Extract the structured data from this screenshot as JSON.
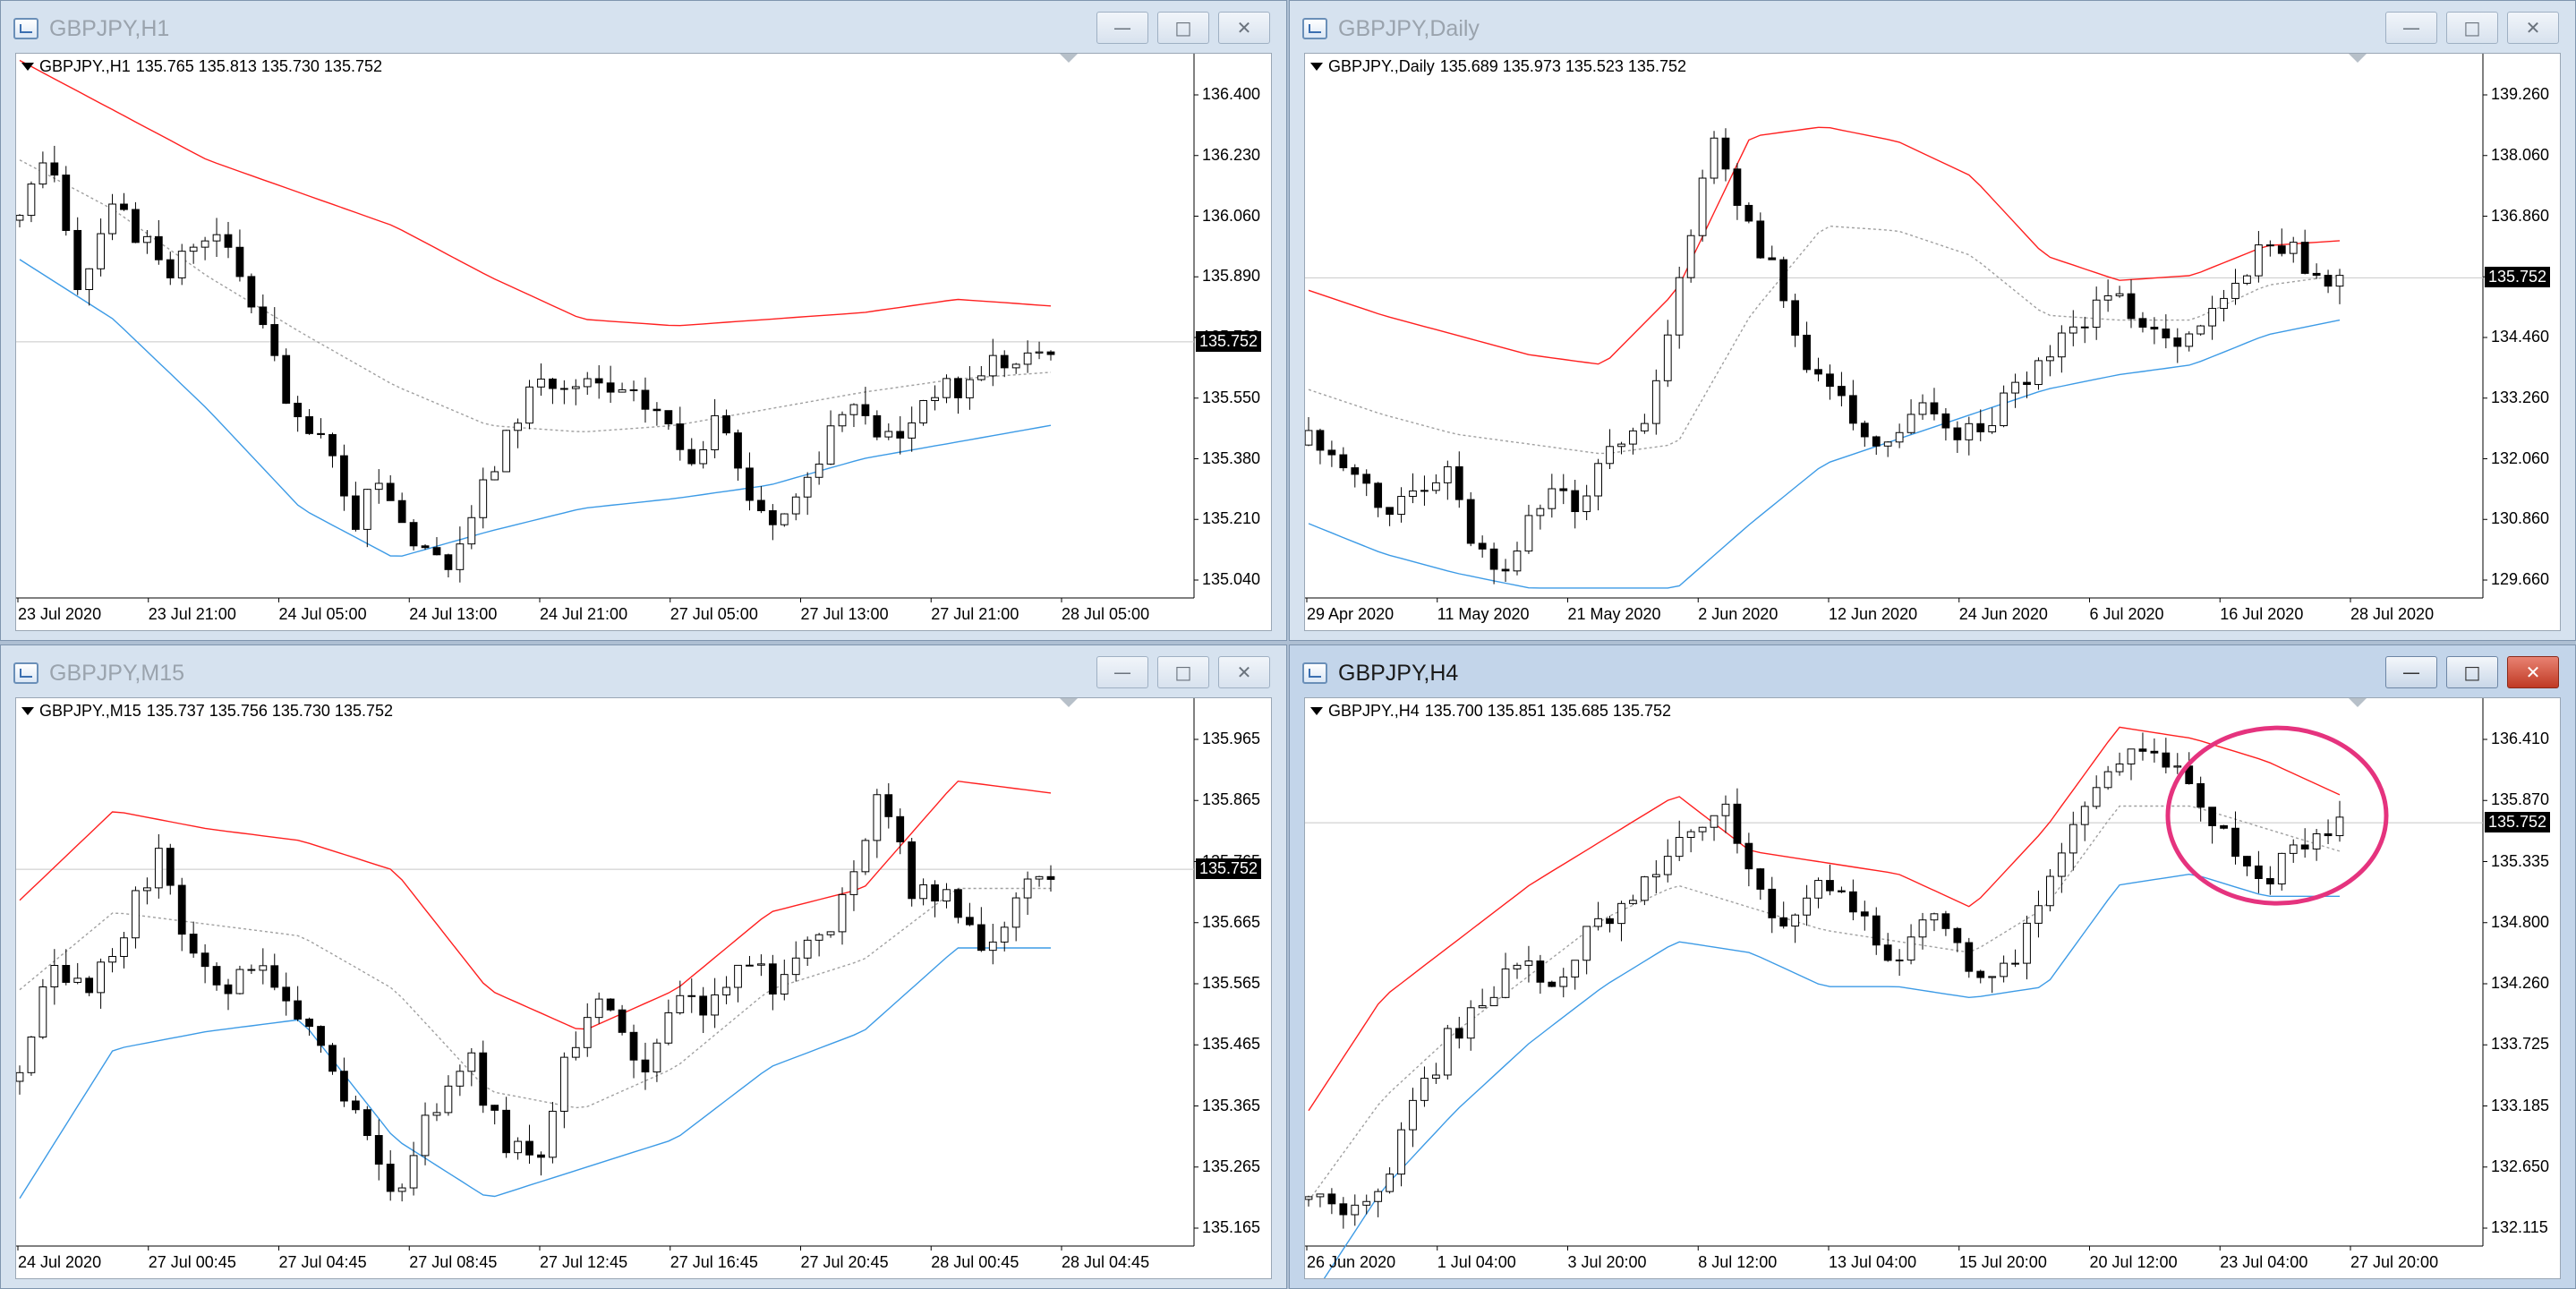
{
  "windows": [
    {
      "title": "GBPJPY,H1",
      "header": {
        "symbol": "GBPJPY.,H1",
        "ohlc": "135.765 135.813 135.730 135.752"
      },
      "current_price": "135.752",
      "y_ticks": [
        "136.400",
        "136.230",
        "136.060",
        "135.890",
        "135.720",
        "135.550",
        "135.380",
        "135.210",
        "135.040"
      ],
      "x_ticks": [
        "23 Jul 2020",
        "23 Jul 21:00",
        "24 Jul 05:00",
        "24 Jul 13:00",
        "24 Jul 21:00",
        "27 Jul 05:00",
        "27 Jul 13:00",
        "27 Jul 21:00",
        "28 Jul 05:00"
      ],
      "active": false
    },
    {
      "title": "GBPJPY,Daily",
      "header": {
        "symbol": "GBPJPY.,Daily",
        "ohlc": "135.689 135.973 135.523 135.752"
      },
      "current_price": "135.752",
      "y_ticks": [
        "139.260",
        "138.060",
        "136.860",
        "135.660",
        "134.460",
        "133.260",
        "132.060",
        "130.860",
        "129.660"
      ],
      "x_ticks": [
        "29 Apr 2020",
        "11 May 2020",
        "21 May 2020",
        "2 Jun 2020",
        "12 Jun 2020",
        "24 Jun 2020",
        "6 Jul 2020",
        "16 Jul 2020",
        "28 Jul 2020"
      ],
      "active": false
    },
    {
      "title": "GBPJPY,M15",
      "header": {
        "symbol": "GBPJPY.,M15",
        "ohlc": "135.737 135.756 135.730 135.752"
      },
      "current_price": "135.752",
      "y_ticks": [
        "135.965",
        "135.865",
        "135.765",
        "135.665",
        "135.565",
        "135.465",
        "135.365",
        "135.265",
        "135.165"
      ],
      "x_ticks": [
        "24 Jul 2020",
        "27 Jul 00:45",
        "27 Jul 04:45",
        "27 Jul 08:45",
        "27 Jul 12:45",
        "27 Jul 16:45",
        "27 Jul 20:45",
        "28 Jul 00:45",
        "28 Jul 04:45"
      ],
      "active": false
    },
    {
      "title": "GBPJPY,H4",
      "header": {
        "symbol": "GBPJPY.,H4",
        "ohlc": "135.700 135.851 135.685 135.752"
      },
      "current_price": "135.752",
      "y_ticks": [
        "136.410",
        "135.870",
        "135.335",
        "134.800",
        "134.260",
        "133.725",
        "133.185",
        "132.650",
        "132.115"
      ],
      "x_ticks": [
        "26 Jun 2020",
        "1 Jul 04:00",
        "3 Jul 20:00",
        "8 Jul 12:00",
        "13 Jul 04:00",
        "15 Jul 20:00",
        "20 Jul 12:00",
        "23 Jul 04:00",
        "27 Jul 20:00"
      ],
      "active": true,
      "annotation": "ellipse-highlight"
    }
  ],
  "window_buttons": {
    "minimize": "—",
    "maximize": "□",
    "close": "✕"
  },
  "colors": {
    "upper_band": "#ff2020",
    "lower_band": "#3d9be6",
    "middle_band": "#a0a0a0",
    "bull_candle": "#ffffff",
    "bear_candle": "#000000",
    "highlight_circle": "#e5337e"
  },
  "chart_data": [
    {
      "type": "candlestick",
      "title": "GBPJPY.,H1",
      "ylim": [
        134.98,
        136.55
      ],
      "path": [
        136.1,
        136.35,
        135.9,
        136.2,
        136.05,
        135.95,
        136.1,
        136.0,
        135.8,
        135.5,
        135.45,
        135.2,
        135.35,
        135.15,
        135.05,
        135.25,
        135.45,
        135.65,
        135.6,
        135.62,
        135.58,
        135.55,
        135.4,
        135.5,
        135.3,
        135.2,
        135.35,
        135.55,
        135.5,
        135.45,
        135.62,
        135.6,
        135.7,
        135.68,
        135.75
      ],
      "bands": {
        "upper": [
          136.6,
          136.45,
          136.3,
          136.2,
          136.1,
          135.95,
          135.82,
          135.8,
          135.82,
          135.84,
          135.88,
          135.86
        ],
        "middle": [
          136.3,
          136.15,
          135.95,
          135.78,
          135.62,
          135.5,
          135.48,
          135.5,
          135.55,
          135.6,
          135.64,
          135.66
        ],
        "lower": [
          136.0,
          135.82,
          135.55,
          135.25,
          135.1,
          135.18,
          135.25,
          135.28,
          135.32,
          135.4,
          135.45,
          135.5
        ]
      }
    },
    {
      "type": "candlestick",
      "title": "GBPJPY.,Daily",
      "ylim": [
        129.3,
        139.8
      ],
      "path": [
        132.5,
        132.3,
        131.5,
        131.0,
        131.6,
        132.0,
        130.6,
        129.8,
        130.8,
        131.5,
        131.2,
        132.3,
        132.5,
        134.0,
        136.5,
        138.5,
        137.0,
        136.0,
        134.5,
        133.5,
        133.0,
        132.2,
        132.8,
        133.2,
        132.5,
        132.7,
        133.5,
        134.2,
        134.6,
        135.2,
        135.3,
        134.8,
        134.6,
        134.9,
        135.4,
        136.3,
        136.5,
        135.9,
        135.75
      ],
      "bands": {
        "upper": [
          135.5,
          135.0,
          134.6,
          134.2,
          134.0,
          135.5,
          138.6,
          138.8,
          138.5,
          137.8,
          136.2,
          135.7,
          135.8,
          136.4,
          136.5
        ],
        "middle": [
          133.5,
          133.0,
          132.6,
          132.4,
          132.2,
          132.4,
          135.0,
          136.8,
          136.7,
          136.2,
          135.0,
          134.9,
          134.9,
          135.6,
          135.8
        ],
        "lower": [
          130.8,
          130.2,
          129.8,
          129.5,
          129.5,
          129.5,
          130.8,
          132.0,
          132.5,
          133.0,
          133.5,
          133.8,
          134.0,
          134.6,
          134.9
        ]
      }
    },
    {
      "type": "candlestick",
      "title": "GBPJPY.,M15",
      "ylim": [
        135.12,
        136.0
      ],
      "path": [
        135.4,
        135.6,
        135.55,
        135.65,
        135.78,
        135.6,
        135.55,
        135.6,
        135.5,
        135.45,
        135.3,
        135.2,
        135.35,
        135.45,
        135.3,
        135.25,
        135.45,
        135.55,
        135.4,
        135.55,
        135.5,
        135.6,
        135.55,
        135.62,
        135.7,
        135.9,
        135.7,
        135.72,
        135.6,
        135.7,
        135.75
      ],
      "bands": {
        "upper": [
          135.7,
          135.85,
          135.82,
          135.8,
          135.75,
          135.55,
          135.48,
          135.55,
          135.68,
          135.72,
          135.9,
          135.88
        ],
        "middle": [
          135.55,
          135.68,
          135.66,
          135.64,
          135.55,
          135.38,
          135.35,
          135.42,
          135.55,
          135.6,
          135.72,
          135.72
        ],
        "lower": [
          135.2,
          135.45,
          135.48,
          135.5,
          135.3,
          135.2,
          135.25,
          135.3,
          135.42,
          135.48,
          135.62,
          135.62
        ]
      }
    },
    {
      "type": "candlestick",
      "title": "GBPJPY.,H4",
      "ylim": [
        132.0,
        136.65
      ],
      "path": [
        132.4,
        132.3,
        132.5,
        133.2,
        133.8,
        134.2,
        134.5,
        134.3,
        134.7,
        135.0,
        135.3,
        135.6,
        136.0,
        135.2,
        134.8,
        135.2,
        134.9,
        134.5,
        134.9,
        134.6,
        134.3,
        134.8,
        135.5,
        136.2,
        136.4,
        136.3,
        135.9,
        135.5,
        135.3,
        135.6,
        135.75
      ],
      "bands": {
        "upper": [
          133.2,
          134.2,
          134.7,
          135.2,
          135.6,
          136.0,
          135.5,
          135.4,
          135.3,
          135.0,
          135.7,
          136.6,
          136.5,
          136.3,
          136.0
        ],
        "middle": [
          132.4,
          133.3,
          133.9,
          134.4,
          134.9,
          135.2,
          135.0,
          134.8,
          134.7,
          134.6,
          135.0,
          135.9,
          135.9,
          135.7,
          135.5
        ],
        "lower": [
          131.5,
          132.5,
          133.2,
          133.8,
          134.3,
          134.7,
          134.6,
          134.3,
          134.3,
          134.2,
          134.3,
          135.2,
          135.3,
          135.1,
          135.1
        ]
      }
    }
  ]
}
